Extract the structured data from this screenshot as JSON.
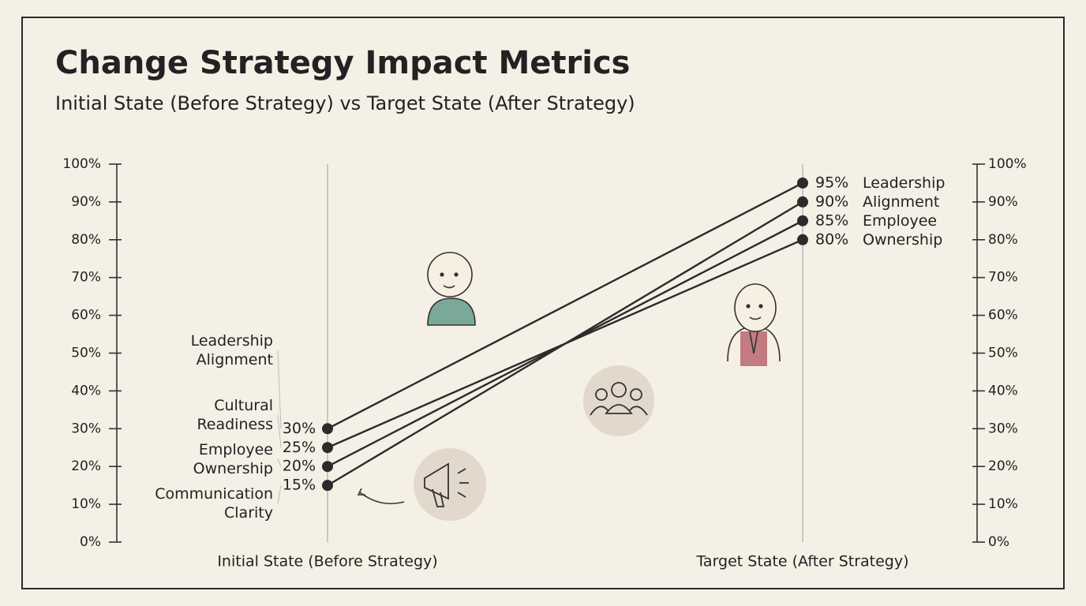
{
  "chart_data": {
    "type": "slope",
    "title": "Change Strategy Impact Metrics",
    "subtitle": "Initial State (Before Strategy) vs Target State (After Strategy)",
    "categories": [
      "Initial State (Before Strategy)",
      "Target State (After Strategy)"
    ],
    "series": [
      {
        "name": "Leadership Alignment",
        "color": "#2b2b2b",
        "values": [
          30,
          95
        ],
        "value_labels": [
          "30%",
          "95%"
        ]
      },
      {
        "name": "Employee Ownership",
        "color": "#2b2b2b",
        "values": [
          20,
          85
        ],
        "value_labels": [
          "20%",
          "85%"
        ]
      },
      {
        "name": "Cultural Readiness",
        "color": "#2b2b2b",
        "values": [
          25,
          80
        ],
        "value_labels": [
          "25%",
          "80%"
        ]
      },
      {
        "name": "Communication Clarity",
        "color": "#2b2b2b",
        "values": [
          15,
          90
        ],
        "value_labels": [
          "15%",
          "90%"
        ]
      }
    ],
    "ylim": [
      0,
      100
    ],
    "yticks": [
      {
        "value": 0,
        "label": "0%"
      },
      {
        "value": 10,
        "label": "10%"
      },
      {
        "value": 20,
        "label": "20%"
      },
      {
        "value": 30,
        "label": "30%"
      },
      {
        "value": 40,
        "label": "40%"
      },
      {
        "value": 50,
        "label": "50%"
      },
      {
        "value": 60,
        "label": "60%"
      },
      {
        "value": 70,
        "label": "70%"
      },
      {
        "value": 80,
        "label": "80%"
      },
      {
        "value": 90,
        "label": "90%"
      },
      {
        "value": 100,
        "label": "100%"
      }
    ],
    "y2lim": [
      0,
      100
    ],
    "y2ticks": [
      {
        "value": 0,
        "label": "0%"
      },
      {
        "value": 10,
        "label": "10%"
      },
      {
        "value": 20,
        "label": "20%"
      },
      {
        "value": 30,
        "label": "30%"
      },
      {
        "value": 40,
        "label": "40%"
      },
      {
        "value": 50,
        "label": "50%"
      },
      {
        "value": 60,
        "label": "60%"
      },
      {
        "value": 70,
        "label": "70%"
      },
      {
        "value": 80,
        "label": "80%"
      },
      {
        "value": 90,
        "label": "90%"
      },
      {
        "value": 100,
        "label": "100%"
      }
    ]
  }
}
